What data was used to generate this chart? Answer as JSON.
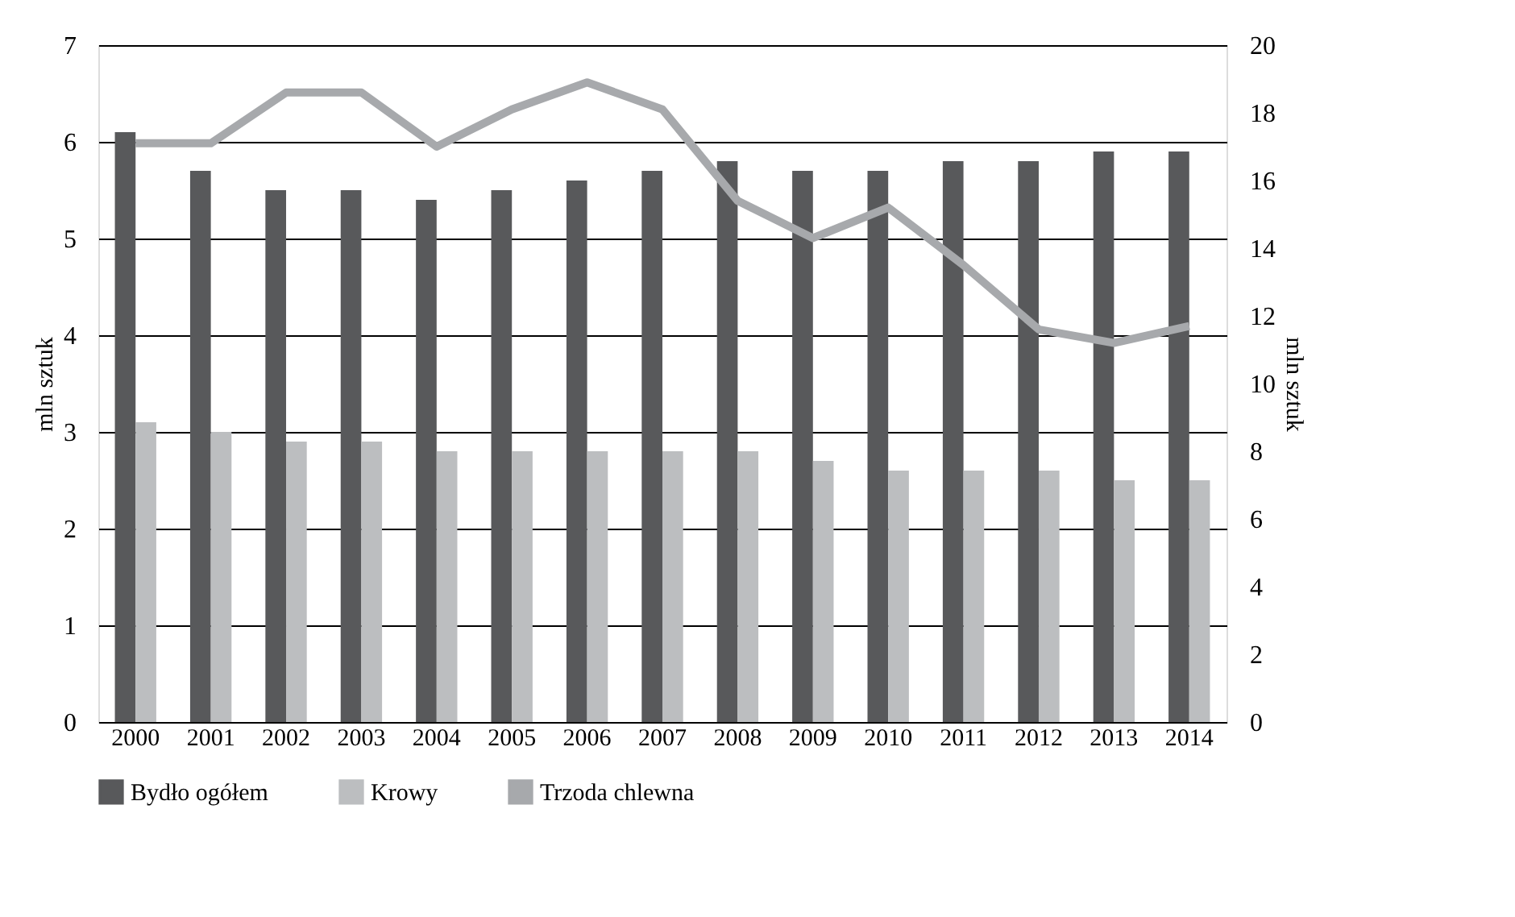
{
  "chart_data": {
    "type": "bar",
    "ylabel": "mln sztuk",
    "y2label": "mln sztuk",
    "categories": [
      "2000",
      "2001",
      "2002",
      "2003",
      "2004",
      "2005",
      "2006",
      "2007",
      "2008",
      "2009",
      "2010",
      "2011",
      "2012",
      "2013",
      "2014"
    ],
    "series": [
      {
        "name": "Bydło ogółem",
        "color": "#58595b",
        "values": [
          6.1,
          5.7,
          5.5,
          5.5,
          5.4,
          5.5,
          5.6,
          5.7,
          5.8,
          5.7,
          5.7,
          5.8,
          5.8,
          5.9,
          5.9
        ]
      },
      {
        "name": "Krowy",
        "color": "#bcbec0",
        "values": [
          3.1,
          3.0,
          2.9,
          2.9,
          2.8,
          2.8,
          2.8,
          2.8,
          2.8,
          2.7,
          2.6,
          2.6,
          2.6,
          2.5,
          2.5
        ]
      },
      {
        "name": "Trzoda chlewna",
        "type": "line",
        "axis": "y2",
        "color": "#a7a9ac",
        "values": [
          17.1,
          17.1,
          18.6,
          18.6,
          17.0,
          18.1,
          18.9,
          18.1,
          15.4,
          14.3,
          15.2,
          13.5,
          11.6,
          11.2,
          11.7
        ]
      }
    ],
    "ylim": [
      0,
      7
    ],
    "yticks": [
      0,
      1,
      2,
      3,
      4,
      5,
      6,
      7
    ],
    "y2lim": [
      0,
      20
    ],
    "y2ticks": [
      0,
      2,
      4,
      6,
      8,
      10,
      12,
      14,
      16,
      18,
      20
    ],
    "grid": "y",
    "legend": "bottom"
  }
}
